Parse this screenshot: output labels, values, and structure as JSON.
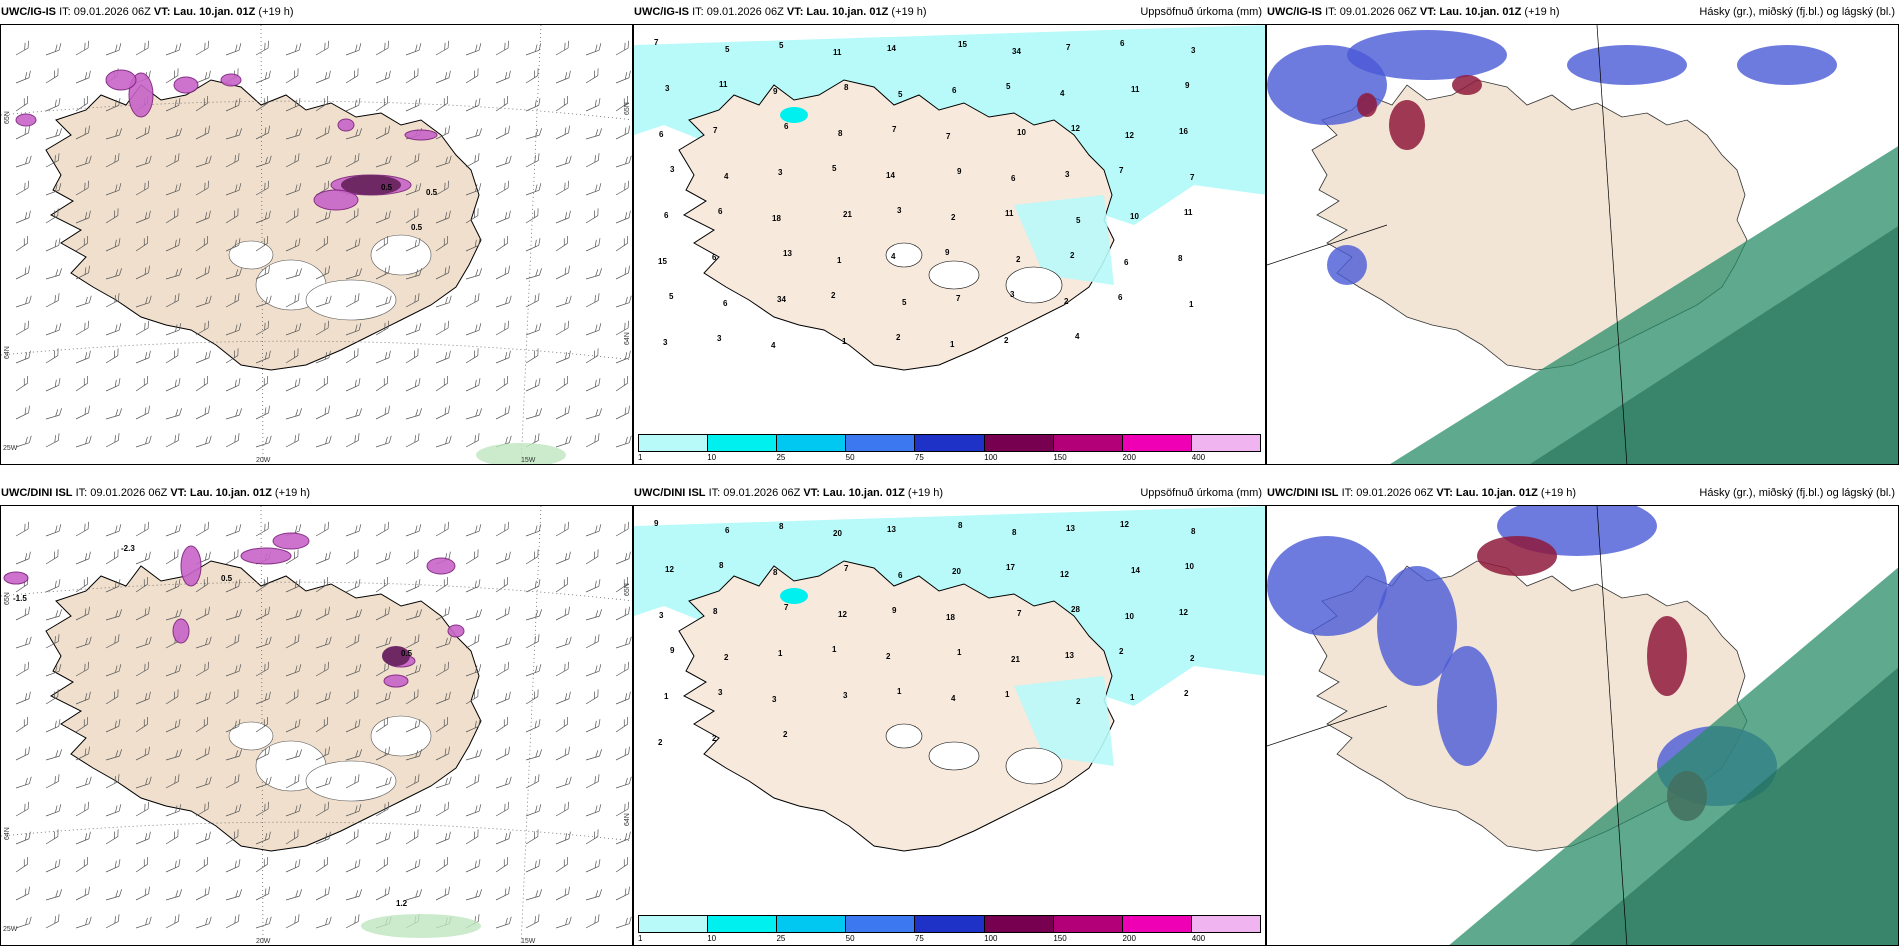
{
  "rows": [
    {
      "model": "UWC/IG-IS",
      "panels": [
        {
          "kind": "wind",
          "prefix": "UWC/IG-IS",
          "it": "IT: 09.01.2026 06Z",
          "vt_label": "VT:",
          "vt_value": "Lau. 10.jan. 01Z",
          "lead": "(+19 h)",
          "right": ""
        },
        {
          "kind": "precip",
          "prefix": "UWC/IG-IS",
          "it": "IT: 09.01.2026 06Z",
          "vt_label": "VT:",
          "vt_value": "Lau. 10.jan. 01Z",
          "lead": "(+19 h)",
          "right": "Uppsöfnuð úrkoma (mm)"
        },
        {
          "kind": "cloud",
          "prefix": "UWC/IG-IS",
          "it": "IT: 09.01.2026 06Z",
          "vt_label": "VT:",
          "vt_value": "Lau. 10.jan. 01Z",
          "lead": "(+19 h)",
          "right": "Hásky (gr.), miðský (fj.bl.) og lágský (bl.)"
        }
      ],
      "precip_numbers": [
        "7",
        "5",
        "5",
        "11",
        "14",
        "15",
        "34",
        "7",
        "6",
        "3",
        "3",
        "11",
        "9",
        "8",
        "5",
        "6",
        "5",
        "4",
        "11",
        "9",
        "6",
        "7",
        "6",
        "8",
        "7",
        "7",
        "10",
        "12",
        "12",
        "16",
        "3",
        "4",
        "3",
        "5",
        "14",
        "9",
        "6",
        "3",
        "7",
        "7",
        "6",
        "6",
        "18",
        "21",
        "3",
        "2",
        "11",
        "5",
        "10",
        "11",
        "15",
        "6",
        "13",
        "1",
        "4",
        "9",
        "2",
        "2",
        "6",
        "8",
        "5",
        "6",
        "34",
        "2",
        "5",
        "7",
        "3",
        "2",
        "6",
        "1",
        "3",
        "3",
        "4",
        "1",
        "2",
        "1",
        "2",
        "4"
      ],
      "wind_labels": [
        "0.5",
        "0.5",
        "0.5"
      ]
    },
    {
      "model": "UWC/DINI ISL",
      "panels": [
        {
          "kind": "wind",
          "prefix": "UWC/DINI ISL",
          "it": "IT: 09.01.2026 06Z",
          "vt_label": "VT:",
          "vt_value": "Lau. 10.jan. 01Z",
          "lead": "(+19 h)",
          "right": ""
        },
        {
          "kind": "precip",
          "prefix": "UWC/DINI ISL",
          "it": "IT: 09.01.2026 06Z",
          "vt_label": "VT:",
          "vt_value": "Lau. 10.jan. 01Z",
          "lead": "(+19 h)",
          "right": "Uppsöfnuð úrkoma (mm)"
        },
        {
          "kind": "cloud",
          "prefix": "UWC/DINI ISL",
          "it": "IT: 09.01.2026 06Z",
          "vt_label": "VT:",
          "vt_value": "Lau. 10.jan. 01Z",
          "lead": "(+19 h)",
          "right": "Hásky (gr.), miðský (fj.bl.) og lágský (bl.)"
        }
      ],
      "precip_numbers": [
        "9",
        "6",
        "8",
        "20",
        "13",
        "8",
        "8",
        "13",
        "12",
        "8",
        "12",
        "8",
        "8",
        "7",
        "6",
        "20",
        "17",
        "12",
        "14",
        "10",
        "3",
        "8",
        "7",
        "12",
        "9",
        "18",
        "7",
        "28",
        "10",
        "12",
        "9",
        "2",
        "1",
        "1",
        "2",
        "1",
        "21",
        "13",
        "2",
        "2",
        "1",
        "3",
        "3",
        "3",
        "1",
        "4",
        "1",
        "2",
        "1",
        "2",
        "2",
        "2",
        "2"
      ],
      "wind_labels": [
        "-2.3",
        "-1.5",
        "0.5",
        "0.5",
        "1.2"
      ]
    }
  ],
  "wind_axes": {
    "lat_left": [
      "65N",
      "64N"
    ],
    "lat_right": [
      "65N",
      "64N"
    ],
    "lon_bottom": [
      "25W",
      "20W",
      "15W"
    ]
  },
  "colorbar": {
    "colors": [
      "#b8fafa",
      "#00f0f0",
      "#00c8f0",
      "#3c78f0",
      "#1e32c8",
      "#780050",
      "#b40078",
      "#f000b4",
      "#f0b4f0"
    ],
    "ticks": [
      "1",
      "10",
      "25",
      "50",
      "75",
      "100",
      "150",
      "200",
      "400"
    ]
  }
}
